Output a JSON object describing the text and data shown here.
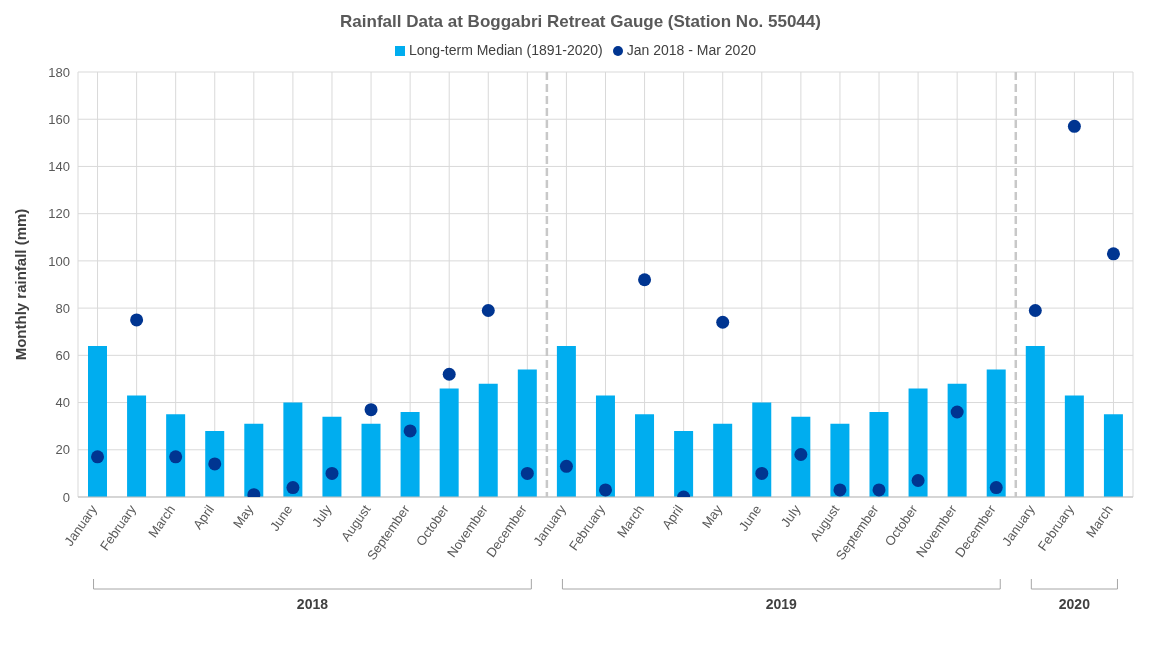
{
  "chart_data": {
    "type": "bar",
    "title": "Rainfall Data at Boggabri Retreat Gauge (Station No. 55044)",
    "ylabel": "Monthly rainfall (mm)",
    "categories": [
      "January",
      "February",
      "March",
      "April",
      "May",
      "June",
      "July",
      "August",
      "September",
      "October",
      "November",
      "December",
      "January",
      "February",
      "March",
      "April",
      "May",
      "June",
      "July",
      "August",
      "September",
      "October",
      "November",
      "December",
      "January",
      "February",
      "March"
    ],
    "series": [
      {
        "name": "Long-term Median (1891-2020)",
        "color": "#00adef",
        "values": [
          64,
          43,
          35,
          28,
          31,
          40,
          34,
          31,
          36,
          46,
          48,
          54,
          64,
          43,
          35,
          28,
          31,
          40,
          34,
          31,
          36,
          46,
          48,
          54,
          64,
          43,
          35
        ]
      },
      {
        "name": "Jan 2018 - Mar 2020",
        "type": "scatter",
        "color": "#003591",
        "values": [
          17,
          75,
          17,
          14,
          1,
          4,
          10,
          37,
          28,
          52,
          79,
          10,
          13,
          3,
          92,
          0,
          74,
          10,
          18,
          3,
          3,
          7,
          36,
          4,
          79,
          157,
          103
        ]
      }
    ],
    "ylim": [
      0,
      180
    ],
    "yticks": [
      0,
      20,
      40,
      60,
      80,
      100,
      120,
      140,
      160,
      180
    ],
    "grid": true,
    "legend": "top",
    "marker": "circle",
    "annotations": [
      "2018",
      "2019",
      "2020"
    ]
  }
}
